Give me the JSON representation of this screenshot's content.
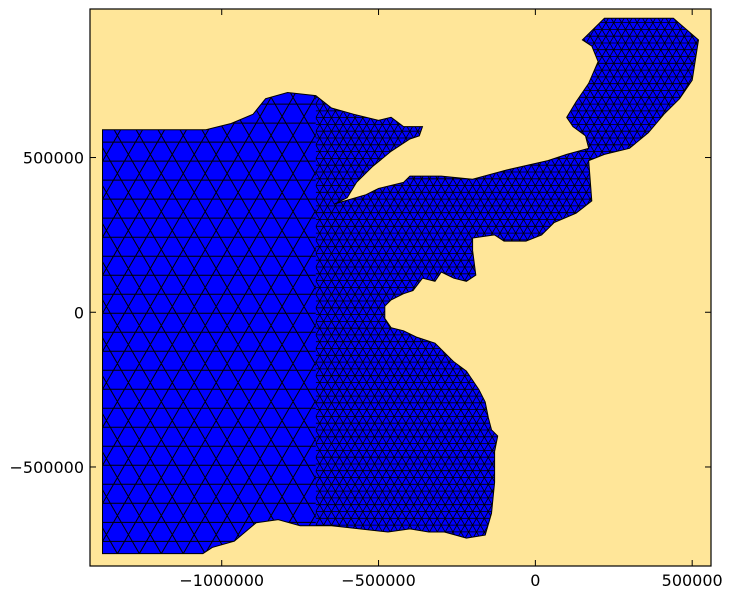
{
  "chart_data": {
    "type": "triangular-mesh",
    "title": "",
    "xlabel": "",
    "ylabel": "",
    "xlim": [
      -1420000,
      560000
    ],
    "ylim": [
      -820000,
      980000
    ],
    "grid": false,
    "legend": "none",
    "x_ticks": [
      {
        "value": -1000000,
        "label": "−1000000"
      },
      {
        "value": -500000,
        "label": "−500000"
      },
      {
        "value": 0,
        "label": "0"
      },
      {
        "value": 500000,
        "label": "500000"
      }
    ],
    "y_ticks": [
      {
        "value": 500000,
        "label": "500000"
      },
      {
        "value": 0,
        "label": "0"
      },
      {
        "value": -500000,
        "label": "−500000"
      }
    ],
    "land_color": "#ffe699",
    "sea_color": "#0000ff",
    "edge_color": "#000000",
    "domain_outline": [
      [
        -1380000,
        590000
      ],
      [
        -1050000,
        590000
      ],
      [
        -970000,
        610000
      ],
      [
        -900000,
        640000
      ],
      [
        -860000,
        690000
      ],
      [
        -790000,
        710000
      ],
      [
        -700000,
        700000
      ],
      [
        -650000,
        660000
      ],
      [
        -580000,
        640000
      ],
      [
        -500000,
        620000
      ],
      [
        -460000,
        630000
      ],
      [
        -420000,
        600000
      ],
      [
        -360000,
        600000
      ],
      [
        -370000,
        570000
      ],
      [
        -400000,
        560000
      ],
      [
        -460000,
        520000
      ],
      [
        -520000,
        470000
      ],
      [
        -570000,
        420000
      ],
      [
        -600000,
        370000
      ],
      [
        -640000,
        350000
      ],
      [
        -540000,
        380000
      ],
      [
        -500000,
        400000
      ],
      [
        -420000,
        420000
      ],
      [
        -400000,
        440000
      ],
      [
        -300000,
        440000
      ],
      [
        -200000,
        430000
      ],
      [
        -90000,
        460000
      ],
      [
        40000,
        490000
      ],
      [
        100000,
        510000
      ],
      [
        170000,
        530000
      ],
      [
        160000,
        570000
      ],
      [
        120000,
        600000
      ],
      [
        100000,
        630000
      ],
      [
        130000,
        680000
      ],
      [
        170000,
        740000
      ],
      [
        200000,
        810000
      ],
      [
        180000,
        860000
      ],
      [
        150000,
        880000
      ],
      [
        220000,
        950000
      ],
      [
        440000,
        950000
      ],
      [
        520000,
        880000
      ],
      [
        500000,
        750000
      ],
      [
        460000,
        690000
      ],
      [
        410000,
        640000
      ],
      [
        360000,
        580000
      ],
      [
        300000,
        530000
      ],
      [
        220000,
        510000
      ],
      [
        170000,
        490000
      ],
      [
        180000,
        360000
      ],
      [
        130000,
        320000
      ],
      [
        60000,
        290000
      ],
      [
        20000,
        250000
      ],
      [
        -30000,
        230000
      ],
      [
        -100000,
        230000
      ],
      [
        -130000,
        250000
      ],
      [
        -200000,
        240000
      ],
      [
        -200000,
        200000
      ],
      [
        -190000,
        120000
      ],
      [
        -220000,
        100000
      ],
      [
        -260000,
        110000
      ],
      [
        -300000,
        130000
      ],
      [
        -320000,
        100000
      ],
      [
        -360000,
        110000
      ],
      [
        -390000,
        70000
      ],
      [
        -420000,
        60000
      ],
      [
        -460000,
        40000
      ],
      [
        -480000,
        20000
      ],
      [
        -480000,
        -20000
      ],
      [
        -460000,
        -50000
      ],
      [
        -420000,
        -60000
      ],
      [
        -380000,
        -80000
      ],
      [
        -320000,
        -100000
      ],
      [
        -260000,
        -160000
      ],
      [
        -220000,
        -190000
      ],
      [
        -180000,
        -250000
      ],
      [
        -160000,
        -290000
      ],
      [
        -150000,
        -340000
      ],
      [
        -140000,
        -380000
      ],
      [
        -120000,
        -400000
      ],
      [
        -130000,
        -450000
      ],
      [
        -130000,
        -550000
      ],
      [
        -140000,
        -650000
      ],
      [
        -160000,
        -720000
      ],
      [
        -220000,
        -730000
      ],
      [
        -290000,
        -710000
      ],
      [
        -340000,
        -710000
      ],
      [
        -400000,
        -700000
      ],
      [
        -470000,
        -710000
      ],
      [
        -560000,
        -700000
      ],
      [
        -650000,
        -690000
      ],
      [
        -750000,
        -690000
      ],
      [
        -820000,
        -670000
      ],
      [
        -890000,
        -680000
      ],
      [
        -960000,
        -740000
      ],
      [
        -1030000,
        -760000
      ],
      [
        -1060000,
        -780000
      ],
      [
        -1380000,
        -780000
      ]
    ],
    "mesh_density": [
      {
        "x_range": [
          -1380000,
          -700000
        ],
        "approx_element_size": 70000
      },
      {
        "x_range": [
          -700000,
          520000
        ],
        "approx_element_size": 25000
      }
    ]
  }
}
